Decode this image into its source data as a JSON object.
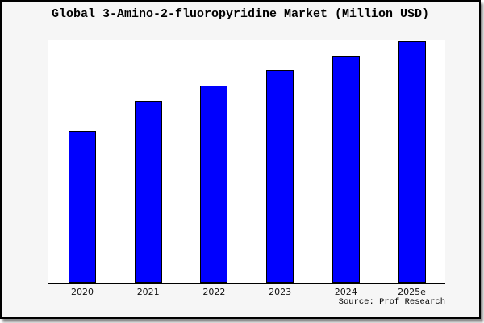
{
  "title": "Global 3-Amino-2-fluoropyridine Market (Million USD)",
  "source_credit": "Source: Prof Research",
  "chart_data": {
    "type": "bar",
    "title": "Global 3-Amino-2-fluoropyridine Market (Million USD)",
    "categories": [
      "2020",
      "2021",
      "2022",
      "2023",
      "2024",
      "2025e"
    ],
    "values": [
      62.9,
      75.3,
      81.6,
      88.0,
      94.0,
      100.0
    ],
    "values_note": "relative index estimated from bar heights (2025e = 100); no numeric y-axis shown",
    "xlabel": "",
    "ylabel": "",
    "ylim": [
      0,
      101
    ],
    "grid": false,
    "legend": "none",
    "annotation": "Source: Prof Research"
  },
  "colors": {
    "outer_background": "#f6f6f6",
    "plot_background": "#ffffff",
    "bar_fill": "#0000fe",
    "bar_border": "#000000",
    "axis_line": "#000000",
    "frame_border": "#000000"
  }
}
